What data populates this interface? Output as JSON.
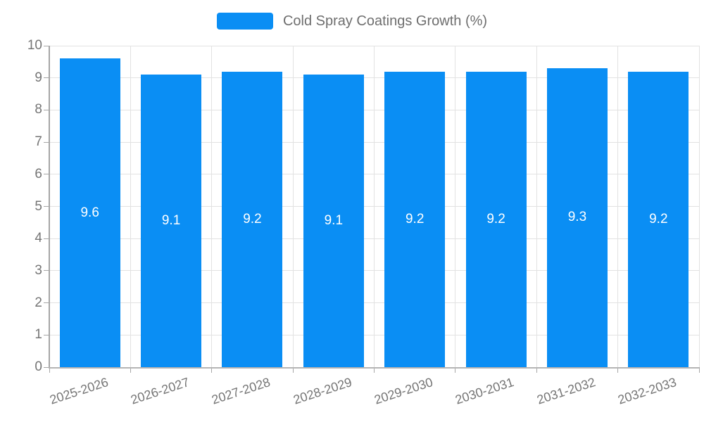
{
  "legend": {
    "label": "Cold Spray Coatings Growth (%)"
  },
  "chart_data": {
    "type": "bar",
    "title": "",
    "xlabel": "",
    "ylabel": "",
    "categories": [
      "2025-2026",
      "2026-2027",
      "2027-2028",
      "2028-2029",
      "2029-2030",
      "2030-2031",
      "2031-2032",
      "2032-2033"
    ],
    "series": [
      {
        "name": "Cold Spray Coatings Growth (%)",
        "values": [
          9.6,
          9.1,
          9.2,
          9.1,
          9.2,
          9.2,
          9.3,
          9.2
        ]
      }
    ],
    "value_labels": [
      "9.6",
      "9.1",
      "9.2",
      "9.1",
      "9.2",
      "9.2",
      "9.3",
      "9.2"
    ],
    "ylim": [
      0,
      10
    ],
    "y_ticks": [
      0,
      1,
      2,
      3,
      4,
      5,
      6,
      7,
      8,
      9,
      10
    ],
    "grid": true,
    "legend_position": "top-center",
    "colors": {
      "bar": "#0a8ef4",
      "grid": "#e2e2e2",
      "axis_line": "#a6a6a6",
      "tick_label": "#757575",
      "value_label": "#ffffff",
      "legend_text": "#6e6e6e",
      "background": "#ffffff"
    }
  }
}
